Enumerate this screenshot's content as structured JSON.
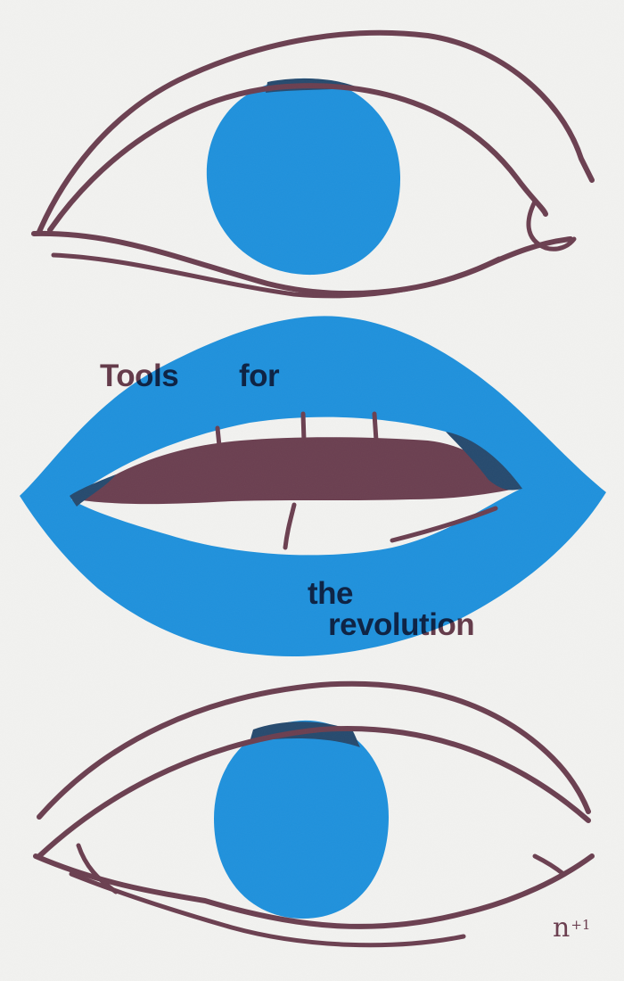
{
  "poster": {
    "title_line1_word1": "Tools",
    "title_line1_word2": "for",
    "title_line2_word1": "the",
    "title_line2_word2": "revolution",
    "logo_n": "n",
    "logo_plus": "+1"
  },
  "colors": {
    "background": "#f2f2f0",
    "blue": "#1f91dc",
    "maroon": "#6b3f50",
    "overlap": "#264a6e"
  },
  "icons": [
    "eye-top-icon",
    "lips-icon",
    "eye-bottom-icon"
  ]
}
